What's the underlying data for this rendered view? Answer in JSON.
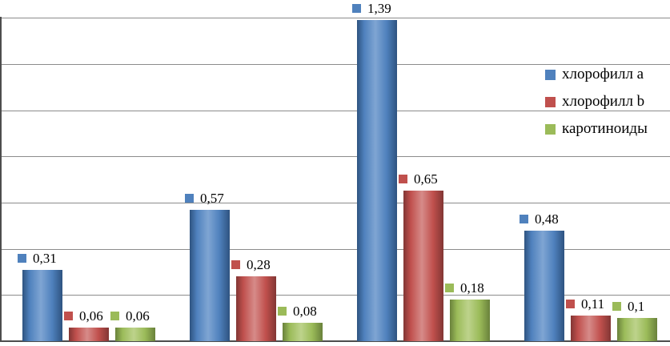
{
  "chart_data": {
    "type": "bar",
    "groups": 4,
    "series": [
      {
        "name": "хлорофилл a",
        "color": "#4F81BD",
        "color_dark": "#2E5380",
        "color_light": "#7FA5D3",
        "values": [
          0.31,
          0.57,
          1.39,
          0.48
        ],
        "labels": [
          "0,31",
          "0,57",
          "1,39",
          "0,48"
        ]
      },
      {
        "name": "хлорофилл b",
        "color": "#C0504D",
        "color_dark": "#823634",
        "color_light": "#D68B89",
        "values": [
          0.06,
          0.28,
          0.65,
          0.11
        ],
        "labels": [
          "0,06",
          "0,28",
          "0,65",
          "0,11"
        ]
      },
      {
        "name": "каротиноиды",
        "color": "#9BBB59",
        "color_dark": "#69813B",
        "color_light": "#BDD38C",
        "values": [
          0.06,
          0.08,
          0.18,
          0.1
        ],
        "labels": [
          "0,06",
          "0,08",
          "0,18",
          "0,1"
        ]
      }
    ],
    "ylim": [
      0,
      1.4
    ],
    "gridline_step": 0.2,
    "grid": true,
    "legend_position": "right",
    "label_decimal_separator": ","
  }
}
